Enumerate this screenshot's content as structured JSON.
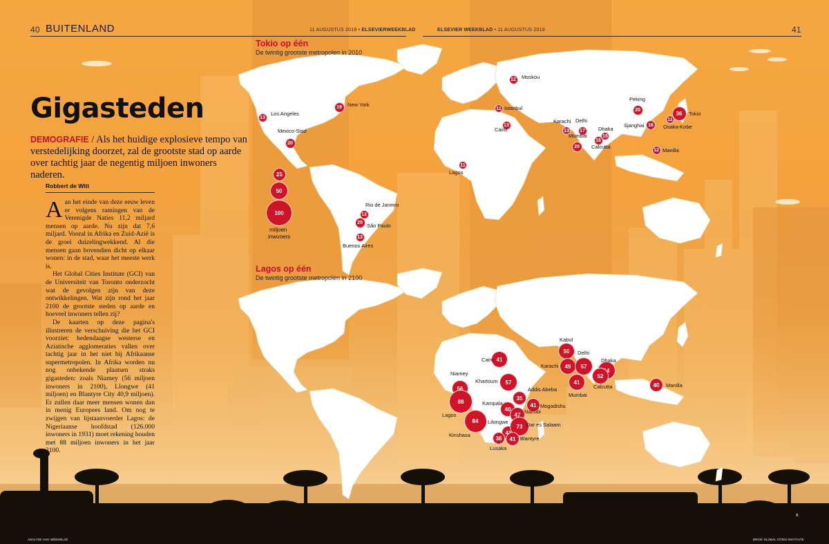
{
  "header": {
    "left_page_number": "40",
    "section": "BUITENLAND",
    "left_dateline_date": "11 AUGUSTUS 2018",
    "left_dateline_pub": "ELSEVIERWEEKBLAD",
    "right_dateline_pub": "ELSEVIER WEEKBLAD",
    "right_dateline_date": "11 AUGUSTUS 2018",
    "right_page_number": "41"
  },
  "article": {
    "title": "Gigasteden",
    "kicker": "DEMOGRAFIE",
    "lead": "/ Als het huidige explosieve tempo van verstedelijking doorzet, zal de grootste stad op aarde over tachtig jaar de negentig miljoen inwoners naderen.",
    "author": "Robbert de Witt",
    "dropcap": "A",
    "paragraph1": "an het einde van deze eeuw leven er volgens ramingen van de Verenigde Naties 11,2 miljard mensen op aarde. Nu zijn dat 7,6 miljard. Vooral in Afrika en Zuid-Azië is de groei duizelingwekkend. Al die mensen gaan bovendien dicht op elkaar wonen: in de stad, waar het meeste werk is.",
    "paragraph2": "Het Global Cities Institute (GCI) van de Universiteit van Toronto onderzocht wat de gevolgen zijn van deze ontwikkelingen. Wat zijn rond het jaar 2100 de grootste steden op aarde en hoeveel inwoners tellen zij?",
    "paragraph3": "De kaarten op deze pagina's illustreren de verschuiving die het GCI voorziet: hedendaagse westerse en Aziatische agglomeraties vallen over tachtig jaar in het niet bij Afrikaanse supermetropolen. In Afrika worden nu nog onbekende plaatsen straks gigasteden: zoals Niamey (56 miljoen inwoners in 2100), Llongwe (41 miljoen) en Blantyre City 40,9 miljoen). Er zullen daar meer mensen wonen dan in menig Europees land. Om nog te zwijgen van lijstaanvoerder Lagos: de Nigeriaanse hoofdstad (126.000 inwoners in 1931) moet rekening houden met 88 miljoen inwoners in het jaar 2100."
  },
  "legend": {
    "values": [
      "25",
      "50",
      "100"
    ],
    "label_line1": "miljoen",
    "label_line2": "inwoners"
  },
  "map_2010": {
    "title": "Tokio op één",
    "subtitle": "De twintig grootste metropolen in 2010",
    "cities": [
      {
        "name": "Los Angeles",
        "value": "13"
      },
      {
        "name": "New York",
        "value": "19"
      },
      {
        "name": "Mexico-Stad",
        "value": "20"
      },
      {
        "name": "Rio de Janeiro",
        "value": "12"
      },
      {
        "name": "São Paulo",
        "value": "20"
      },
      {
        "name": "Buenos Aires",
        "value": "13"
      },
      {
        "name": "Moskou",
        "value": "12"
      },
      {
        "name": "Istanbul",
        "value": "11"
      },
      {
        "name": "Cairo",
        "value": "13"
      },
      {
        "name": "Lagos",
        "value": "11"
      },
      {
        "name": "Karachi",
        "value": "13"
      },
      {
        "name": "Delhi",
        "value": "17"
      },
      {
        "name": "Mumbai",
        "value": "20"
      },
      {
        "name": "Dhaka",
        "value": "15"
      },
      {
        "name": "Calcutta",
        "value": "16"
      },
      {
        "name": "Peking",
        "value": "20"
      },
      {
        "name": "Sjanghai",
        "value": "16"
      },
      {
        "name": "Tokio",
        "value": "36"
      },
      {
        "name": "Osaka-Kobe",
        "value": "11"
      },
      {
        "name": "Manilla",
        "value": "12"
      }
    ]
  },
  "map_2100": {
    "title": "Lagos op één",
    "subtitle": "De twintig grootste metropolen in 2100",
    "cities": [
      {
        "name": "Cairo",
        "value": "41"
      },
      {
        "name": "Niamey",
        "value": "56"
      },
      {
        "name": "Lagos",
        "value": "88"
      },
      {
        "name": "Kinshasa",
        "value": "84"
      },
      {
        "name": "Khartoum",
        "value": "57"
      },
      {
        "name": "Addis Abeba",
        "value": "35"
      },
      {
        "name": "Kampala",
        "value": "40"
      },
      {
        "name": "Mogadishu",
        "value": "41"
      },
      {
        "name": "Nairobi",
        "value": "47"
      },
      {
        "name": "Lilongwe",
        "value": "41"
      },
      {
        "name": "Dar es Salaam",
        "value": "73"
      },
      {
        "name": "Blantyre",
        "value": "41"
      },
      {
        "name": "Lusaka",
        "value": "38"
      },
      {
        "name": "Kabul",
        "value": "50"
      },
      {
        "name": "Karachi",
        "value": "49"
      },
      {
        "name": "Delhi",
        "value": "57"
      },
      {
        "name": "Mumbai",
        "value": "41"
      },
      {
        "name": "Dhaka",
        "value": "54"
      },
      {
        "name": "Calcutta",
        "value": "52"
      },
      {
        "name": "Manilla",
        "value": "40"
      }
    ]
  },
  "footer": {
    "left_credit": "ANALYSE VAN: WEEKBLAD",
    "right_credit": "BRON: GLOBAL CITIES INSTITUTE",
    "end_mark": "x"
  },
  "colors": {
    "sky": "#f3a23e",
    "bubble": "#d01427",
    "accent_red": "#c8102e",
    "land": "#ffffff",
    "silhouette": "#141008"
  }
}
